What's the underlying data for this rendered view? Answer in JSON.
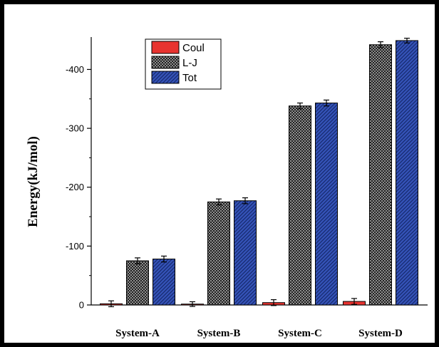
{
  "chart_data": {
    "type": "bar",
    "title": "",
    "xlabel": "",
    "ylabel": "Energy(kJ/mol)",
    "categories": [
      "System-A",
      "System-B",
      "System-C",
      "System-D"
    ],
    "series": [
      {
        "name": "Coul",
        "values": [
          -2,
          -1.5,
          -4,
          -6
        ],
        "errors": [
          5,
          4,
          5,
          5
        ],
        "color": "#e8332f",
        "pattern": "solid"
      },
      {
        "name": "L-J",
        "values": [
          -75,
          -175,
          -338,
          -442
        ],
        "errors": [
          5,
          5,
          5,
          5
        ],
        "color": "#303030",
        "pattern": "crosshatch"
      },
      {
        "name": "Tot",
        "values": [
          -78,
          -177,
          -343,
          -449
        ],
        "errors": [
          5,
          5,
          5,
          4
        ],
        "color": "#2f4fb0",
        "pattern": "diagonal"
      }
    ],
    "ylim": [
      0,
      -455
    ],
    "yticks": [
      0,
      -100,
      -200,
      -300,
      -400
    ],
    "ytick_labels": [
      "0",
      "-100",
      "-200",
      "-300",
      "-400"
    ],
    "legend_position": "top-left",
    "grid": false
  }
}
